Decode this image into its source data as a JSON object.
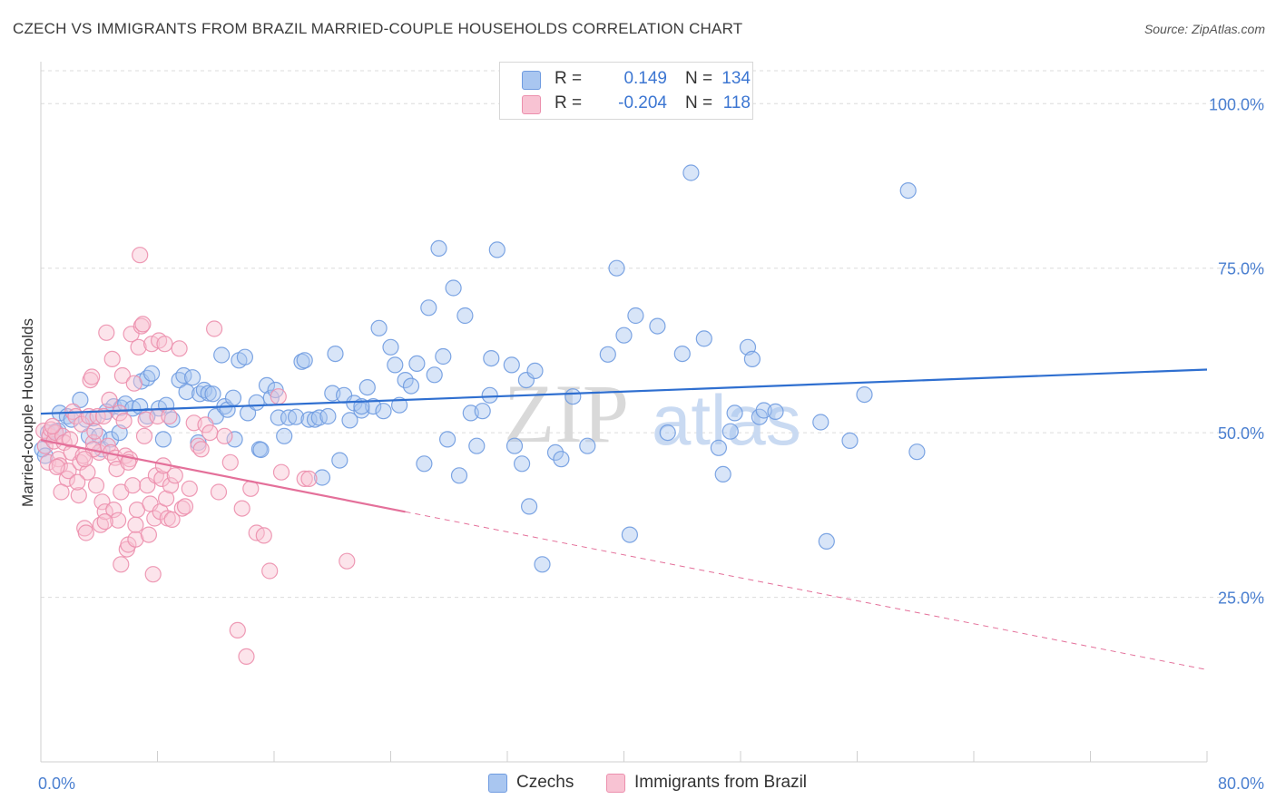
{
  "header": {
    "title": "CZECH VS IMMIGRANTS FROM BRAZIL MARRIED-COUPLE HOUSEHOLDS CORRELATION CHART",
    "source": "Source: ZipAtlas.com"
  },
  "legend": {
    "rows": [
      {
        "r_label": "R =",
        "r_value": "0.149",
        "n_label": "N =",
        "n_value": "134",
        "color": "#a9c6f0",
        "border": "#6f9be0"
      },
      {
        "r_label": "R =",
        "r_value": "-0.204",
        "n_label": "N =",
        "n_value": "118",
        "color": "#f8c3d3",
        "border": "#ec8fad"
      }
    ],
    "bottom": [
      {
        "label": "Czechs",
        "color": "#a9c6f0",
        "border": "#6f9be0"
      },
      {
        "label": "Immigrants from Brazil",
        "color": "#f8c3d3",
        "border": "#ec8fad"
      }
    ]
  },
  "watermark": {
    "zip": "ZIP",
    "atlas": "atlas"
  },
  "chart_data": {
    "type": "scatter",
    "title": "CZECH VS IMMIGRANTS FROM BRAZIL MARRIED-COUPLE HOUSEHOLDS CORRELATION CHART",
    "xlabel": "",
    "ylabel": "Married-couple Households",
    "xlim": [
      0,
      80
    ],
    "ylim": [
      0,
      105
    ],
    "x_tick_labels": [
      "0.0%",
      "80.0%"
    ],
    "y_ticks": [
      25,
      50,
      75,
      100
    ],
    "y_tick_labels": [
      "25.0%",
      "50.0%",
      "75.0%",
      "100.0%"
    ],
    "grid": true,
    "legend_position": "top-center",
    "series": [
      {
        "name": "Czechs",
        "color": "#6f9be0",
        "fill": "#a9c6f0",
        "trend": {
          "x": [
            0,
            80
          ],
          "y": [
            52.9,
            59.6
          ],
          "style": "solid"
        },
        "points": [
          [
            0.1,
            47.5
          ],
          [
            0.3,
            46.5
          ],
          [
            0.5,
            50.0
          ],
          [
            1.0,
            50.2
          ],
          [
            1.2,
            50.3
          ],
          [
            1.3,
            53.0
          ],
          [
            1.8,
            52.5
          ],
          [
            2.1,
            52.0
          ],
          [
            2.7,
            55.0
          ],
          [
            3.1,
            52.0
          ],
          [
            3.3,
            49.5
          ],
          [
            3.6,
            52.2
          ],
          [
            4.0,
            49.5
          ],
          [
            4.2,
            47.5
          ],
          [
            4.8,
            49.0
          ],
          [
            5.0,
            54.0
          ],
          [
            5.4,
            50.0
          ],
          [
            5.5,
            53.8
          ],
          [
            5.8,
            54.4
          ],
          [
            6.3,
            53.7
          ],
          [
            6.8,
            54.0
          ],
          [
            6.9,
            57.8
          ],
          [
            7.3,
            58.3
          ],
          [
            7.6,
            59.0
          ],
          [
            8.1,
            53.7
          ],
          [
            8.4,
            49.0
          ],
          [
            8.6,
            54.2
          ],
          [
            9.0,
            52.0
          ],
          [
            9.5,
            58.0
          ],
          [
            9.8,
            58.7
          ],
          [
            10.0,
            56.2
          ],
          [
            10.4,
            58.4
          ],
          [
            10.8,
            48.5
          ],
          [
            10.9,
            55.9
          ],
          [
            11.2,
            56.5
          ],
          [
            11.5,
            56.0
          ],
          [
            11.8,
            55.9
          ],
          [
            12.0,
            52.5
          ],
          [
            12.4,
            61.8
          ],
          [
            12.6,
            54.0
          ],
          [
            12.8,
            53.5
          ],
          [
            13.3,
            49.0
          ],
          [
            13.6,
            61.0
          ],
          [
            14.0,
            61.5
          ],
          [
            14.2,
            53.0
          ],
          [
            14.8,
            54.6
          ],
          [
            15.0,
            47.5
          ],
          [
            15.1,
            47.4
          ],
          [
            15.5,
            57.2
          ],
          [
            15.8,
            55.3
          ],
          [
            16.1,
            56.5
          ],
          [
            16.3,
            52.3
          ],
          [
            16.7,
            49.5
          ],
          [
            17.0,
            52.3
          ],
          [
            17.5,
            52.4
          ],
          [
            17.9,
            60.8
          ],
          [
            18.1,
            61.0
          ],
          [
            18.4,
            52.0
          ],
          [
            18.8,
            52.0
          ],
          [
            19.1,
            52.3
          ],
          [
            19.3,
            43.2
          ],
          [
            19.7,
            52.5
          ],
          [
            20.0,
            56.0
          ],
          [
            20.2,
            62.0
          ],
          [
            20.5,
            45.8
          ],
          [
            20.8,
            55.7
          ],
          [
            21.2,
            51.9
          ],
          [
            21.5,
            54.5
          ],
          [
            22.0,
            53.4
          ],
          [
            22.4,
            56.9
          ],
          [
            22.8,
            54.0
          ],
          [
            23.2,
            65.9
          ],
          [
            23.5,
            53.3
          ],
          [
            24.0,
            63.0
          ],
          [
            24.3,
            60.3
          ],
          [
            24.6,
            54.2
          ],
          [
            25.0,
            58.0
          ],
          [
            25.4,
            57.1
          ],
          [
            25.8,
            60.5
          ],
          [
            26.3,
            45.3
          ],
          [
            26.6,
            69.0
          ],
          [
            27.0,
            58.8
          ],
          [
            27.3,
            78.0
          ],
          [
            27.6,
            61.6
          ],
          [
            27.9,
            49.0
          ],
          [
            28.3,
            72.0
          ],
          [
            28.7,
            43.5
          ],
          [
            29.1,
            67.8
          ],
          [
            29.5,
            53.0
          ],
          [
            29.9,
            48.0
          ],
          [
            30.3,
            53.3
          ],
          [
            30.8,
            55.7
          ],
          [
            30.9,
            61.3
          ],
          [
            31.3,
            77.8
          ],
          [
            32.3,
            60.3
          ],
          [
            32.5,
            48.0
          ],
          [
            33.0,
            45.3
          ],
          [
            33.3,
            58.0
          ],
          [
            33.5,
            38.8
          ],
          [
            33.9,
            59.4
          ],
          [
            34.4,
            30.0
          ],
          [
            35.3,
            47.0
          ],
          [
            35.7,
            46.0
          ],
          [
            36.5,
            55.5
          ],
          [
            37.5,
            48.0
          ],
          [
            38.9,
            61.9
          ],
          [
            39.5,
            75.0
          ],
          [
            40.0,
            64.8
          ],
          [
            40.4,
            34.5
          ],
          [
            40.8,
            67.8
          ],
          [
            42.3,
            66.2
          ],
          [
            43.0,
            50.0
          ],
          [
            44.0,
            62.0
          ],
          [
            44.6,
            89.5
          ],
          [
            45.5,
            64.3
          ],
          [
            46.5,
            47.7
          ],
          [
            46.8,
            43.7
          ],
          [
            47.3,
            50.2
          ],
          [
            47.6,
            53.0
          ],
          [
            48.5,
            63.0
          ],
          [
            48.8,
            61.2
          ],
          [
            49.3,
            52.4
          ],
          [
            49.6,
            53.4
          ],
          [
            50.4,
            53.2
          ],
          [
            53.5,
            51.6
          ],
          [
            53.9,
            33.5
          ],
          [
            55.5,
            48.8
          ],
          [
            56.5,
            55.8
          ],
          [
            59.5,
            86.8
          ],
          [
            60.1,
            47.1
          ],
          [
            13.2,
            55.3
          ],
          [
            22.0,
            54.0
          ],
          [
            7.3,
            52.5
          ],
          [
            4.5,
            53.2
          ]
        ]
      },
      {
        "name": "Immigrants from Brazil",
        "color": "#ec8fad",
        "fill": "#f8c3d3",
        "trend": {
          "x": [
            0,
            80
          ],
          "y": [
            48.9,
            14.0
          ],
          "solid_until_x": 25,
          "style": "solid-then-dashed"
        },
        "points": [
          [
            0.2,
            50.3
          ],
          [
            0.3,
            48.0
          ],
          [
            0.5,
            45.5
          ],
          [
            0.6,
            49.5
          ],
          [
            0.7,
            50.5
          ],
          [
            0.9,
            48.7
          ],
          [
            1.0,
            50.0
          ],
          [
            1.2,
            46.0
          ],
          [
            1.3,
            45.0
          ],
          [
            1.5,
            49.5
          ],
          [
            1.6,
            48.5
          ],
          [
            1.8,
            43.0
          ],
          [
            1.9,
            44.2
          ],
          [
            2.1,
            47.0
          ],
          [
            2.2,
            53.2
          ],
          [
            2.4,
            52.5
          ],
          [
            2.6,
            40.5
          ],
          [
            2.7,
            45.5
          ],
          [
            2.8,
            51.3
          ],
          [
            2.9,
            46.5
          ],
          [
            3.0,
            35.5
          ],
          [
            3.1,
            34.8
          ],
          [
            3.2,
            44.0
          ],
          [
            3.3,
            52.5
          ],
          [
            3.4,
            58.0
          ],
          [
            3.5,
            58.5
          ],
          [
            3.6,
            48.5
          ],
          [
            3.7,
            50.2
          ],
          [
            3.8,
            42.0
          ],
          [
            3.9,
            52.5
          ],
          [
            4.0,
            47.0
          ],
          [
            4.1,
            36.0
          ],
          [
            4.2,
            39.5
          ],
          [
            4.3,
            52.5
          ],
          [
            4.4,
            38.0
          ],
          [
            4.5,
            65.2
          ],
          [
            4.6,
            48.0
          ],
          [
            4.7,
            55.0
          ],
          [
            4.8,
            47.0
          ],
          [
            4.9,
            61.2
          ],
          [
            5.0,
            38.3
          ],
          [
            5.1,
            46.2
          ],
          [
            5.2,
            44.5
          ],
          [
            5.3,
            36.7
          ],
          [
            5.4,
            53.0
          ],
          [
            5.5,
            41.0
          ],
          [
            5.6,
            58.7
          ],
          [
            5.7,
            51.8
          ],
          [
            5.8,
            46.5
          ],
          [
            5.9,
            32.3
          ],
          [
            6.0,
            33.0
          ],
          [
            6.1,
            46.0
          ],
          [
            6.2,
            65.0
          ],
          [
            6.3,
            42.0
          ],
          [
            6.4,
            57.5
          ],
          [
            6.5,
            33.8
          ],
          [
            6.6,
            38.3
          ],
          [
            6.7,
            63.0
          ],
          [
            6.8,
            77.0
          ],
          [
            6.9,
            66.2
          ],
          [
            7.0,
            66.5
          ],
          [
            7.1,
            49.5
          ],
          [
            7.2,
            52.0
          ],
          [
            7.3,
            42.0
          ],
          [
            7.4,
            34.5
          ],
          [
            7.5,
            39.2
          ],
          [
            7.6,
            63.5
          ],
          [
            7.7,
            28.5
          ],
          [
            7.8,
            37.0
          ],
          [
            7.9,
            43.5
          ],
          [
            8.0,
            52.5
          ],
          [
            8.1,
            64.0
          ],
          [
            8.2,
            38.0
          ],
          [
            8.3,
            43.0
          ],
          [
            8.4,
            45.0
          ],
          [
            8.5,
            63.5
          ],
          [
            8.6,
            40.0
          ],
          [
            8.7,
            37.0
          ],
          [
            8.8,
            52.5
          ],
          [
            8.9,
            42.0
          ],
          [
            9.0,
            36.8
          ],
          [
            9.5,
            62.8
          ],
          [
            9.7,
            38.5
          ],
          [
            9.9,
            38.8
          ],
          [
            10.2,
            41.5
          ],
          [
            10.5,
            51.5
          ],
          [
            10.8,
            48.0
          ],
          [
            11.0,
            47.5
          ],
          [
            11.3,
            51.2
          ],
          [
            11.6,
            50.0
          ],
          [
            11.9,
            65.8
          ],
          [
            12.2,
            41.0
          ],
          [
            12.6,
            49.5
          ],
          [
            13.0,
            45.5
          ],
          [
            13.5,
            20.0
          ],
          [
            13.8,
            38.5
          ],
          [
            14.1,
            16.0
          ],
          [
            14.4,
            41.5
          ],
          [
            14.8,
            34.8
          ],
          [
            15.3,
            34.4
          ],
          [
            15.7,
            29.0
          ],
          [
            16.3,
            55.5
          ],
          [
            16.5,
            44.0
          ],
          [
            18.1,
            43.0
          ],
          [
            18.4,
            43.0
          ],
          [
            21.0,
            30.5
          ],
          [
            4.4,
            36.5
          ],
          [
            5.5,
            30.0
          ],
          [
            6.0,
            45.5
          ],
          [
            2.5,
            42.5
          ],
          [
            1.1,
            44.8
          ],
          [
            3.6,
            47.5
          ],
          [
            0.8,
            51.0
          ],
          [
            1.4,
            41.0
          ],
          [
            2.0,
            49.0
          ],
          [
            3.0,
            46.0
          ],
          [
            6.5,
            36.0
          ],
          [
            9.2,
            43.5
          ]
        ]
      }
    ]
  }
}
